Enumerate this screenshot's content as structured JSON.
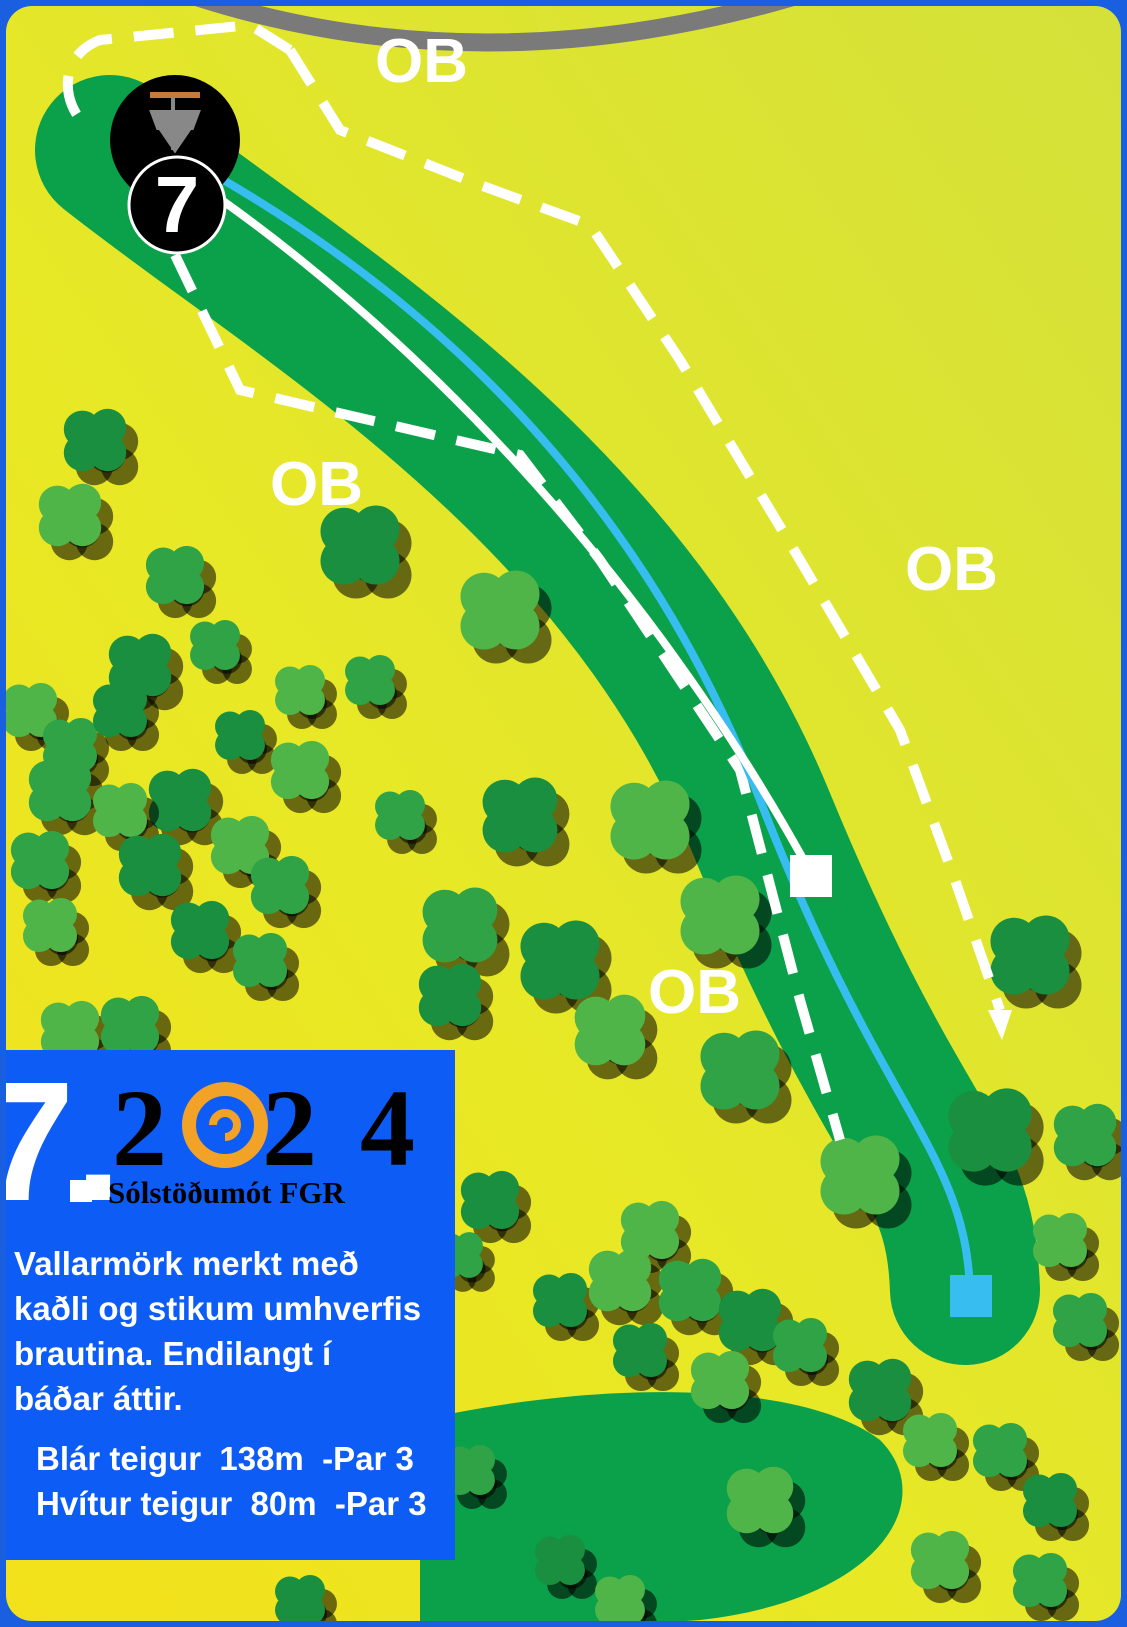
{
  "hole": {
    "number": "7"
  },
  "ob_labels": [
    "OB",
    "OB",
    "OB",
    "OB"
  ],
  "info": {
    "hole_label": "7.",
    "year_digits": [
      "2",
      "2",
      "4"
    ],
    "event": "Sólstöðumót FGR",
    "description": [
      "Vallarmörk merkt með",
      "kaðli og stikum umhverfis",
      "brautina. Endilangt í",
      "báðar áttir."
    ],
    "tees": [
      "Blár teigur  138m  -Par 3",
      "Hvítur teigur  80m  -Par 3"
    ]
  }
}
